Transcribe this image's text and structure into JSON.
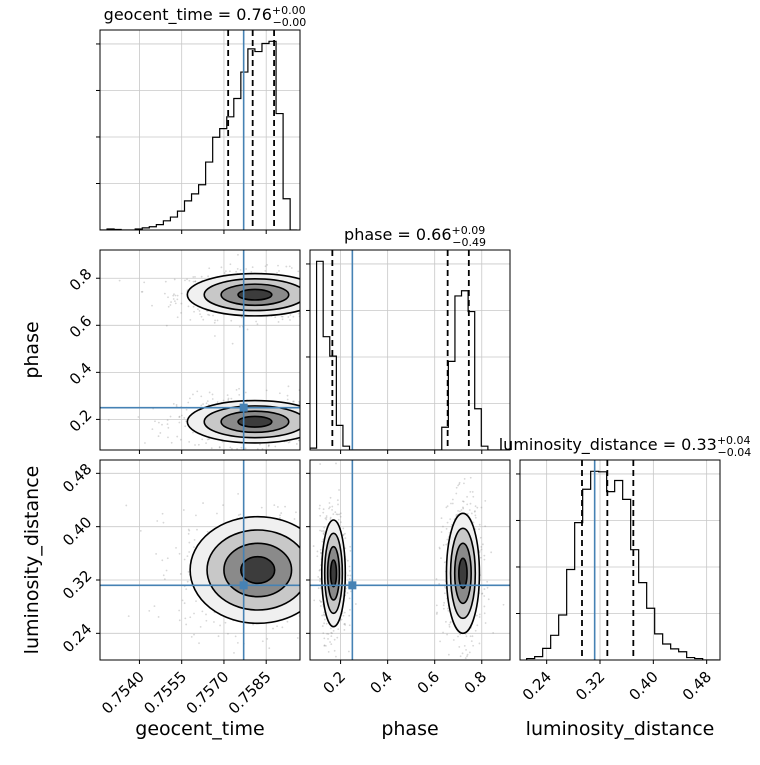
{
  "colors": {
    "truth": "#4682b4",
    "hist": "#000000",
    "quantile": "#000000",
    "grid": "#c8c8c8",
    "points": "#8c8c8c"
  },
  "chart_data": {
    "type": "corner",
    "parameters": [
      "geocent_time",
      "phase",
      "luminosity_distance"
    ],
    "titles": [
      {
        "param": "geocent_time",
        "median": "0.76",
        "plus": "+0.00",
        "minus": "−0.00"
      },
      {
        "param": "phase",
        "median": "0.66",
        "plus": "+0.09",
        "minus": "−0.49"
      },
      {
        "param": "luminosity_distance",
        "median": "0.33",
        "plus": "+0.04",
        "minus": "−0.04"
      }
    ],
    "axes": {
      "geocent_time": {
        "range": [
          0.7526,
          0.7597
        ],
        "ticks": [
          "0.7540",
          "0.7555",
          "0.7570",
          "0.7585"
        ]
      },
      "phase": {
        "range": [
          0.07,
          0.92
        ],
        "ticks": [
          "0.2",
          "0.4",
          "0.6",
          "0.8"
        ]
      },
      "luminosity_distance": {
        "range": [
          0.2,
          0.5
        ],
        "ticks": [
          "0.24",
          "0.32",
          "0.40",
          "0.48"
        ]
      }
    },
    "truths": {
      "geocent_time": 0.7577,
      "phase": 0.25,
      "luminosity_distance": 0.312
    },
    "quantiles": {
      "geocent_time": [
        0.75715,
        0.75802,
        0.75878
      ],
      "phase": [
        0.165,
        0.655,
        0.745
      ],
      "luminosity_distance": [
        0.293,
        0.331,
        0.37
      ]
    },
    "histograms": {
      "geocent_time": {
        "edges": [
          0.7526,
          0.75285,
          0.7531,
          0.75335,
          0.7536,
          0.75385,
          0.7541,
          0.75435,
          0.7546,
          0.75485,
          0.7551,
          0.75535,
          0.7556,
          0.75585,
          0.7561,
          0.75635,
          0.7566,
          0.75685,
          0.7571,
          0.75735,
          0.7576,
          0.75785,
          0.7581,
          0.75835,
          0.7586,
          0.75885,
          0.7591,
          0.75935,
          0.7596
        ],
        "counts": [
          0.0,
          0.2,
          0.1,
          0.0,
          0.0,
          0.2,
          0.4,
          0.6,
          1.0,
          1.7,
          2.4,
          3.5,
          5.4,
          6.7,
          8.4,
          12.6,
          17.2,
          18.8,
          21.0,
          24.4,
          29.3,
          33.6,
          33.1,
          34.6,
          35.0,
          21.6,
          5.8,
          0.0
        ]
      },
      "phase": {
        "edges": [
          0.07,
          0.098,
          0.126,
          0.154,
          0.182,
          0.21,
          0.238,
          0.266,
          0.294,
          0.322,
          0.35,
          0.378,
          0.406,
          0.434,
          0.462,
          0.49,
          0.518,
          0.546,
          0.574,
          0.602,
          0.63,
          0.658,
          0.686,
          0.714,
          0.742,
          0.77,
          0.798,
          0.826,
          0.854,
          0.882,
          0.91
        ],
        "counts": [
          0.4,
          39.8,
          23.9,
          19.8,
          5.2,
          0.8,
          0.0,
          0.0,
          0.0,
          0.0,
          0.0,
          0.0,
          0.0,
          0.0,
          0.0,
          0.0,
          0.0,
          0.0,
          0.0,
          0.0,
          4.8,
          18.7,
          32.5,
          33.6,
          29.2,
          8.7,
          0.8,
          0.0,
          0.0,
          0.0
        ]
      },
      "luminosity_distance": {
        "edges": [
          0.21,
          0.222,
          0.234,
          0.246,
          0.258,
          0.27,
          0.282,
          0.294,
          0.306,
          0.318,
          0.33,
          0.342,
          0.354,
          0.366,
          0.378,
          0.39,
          0.402,
          0.414,
          0.426,
          0.438,
          0.45,
          0.462,
          0.474,
          0.486,
          0.498
        ],
        "counts": [
          0.3,
          0.7,
          2.4,
          5.1,
          9.3,
          18.7,
          28.4,
          35.3,
          39.0,
          38.9,
          34.8,
          37.1,
          33.2,
          22.8,
          16.0,
          10.7,
          5.4,
          3.3,
          2.3,
          1.7,
          0.5,
          0.3,
          0.0,
          0.0
        ]
      }
    },
    "contour_levels": 4,
    "clusters": {
      "geocent_time_phase": [
        {
          "cx": 0.7581,
          "cy": 0.73,
          "sx": 0.0012,
          "sy": 0.045
        },
        {
          "cx": 0.7581,
          "cy": 0.19,
          "sx": 0.0012,
          "sy": 0.045
        }
      ],
      "geocent_time_luminosity_distance": [
        {
          "cx": 0.7582,
          "cy": 0.335,
          "sx": 0.0012,
          "sy": 0.04
        }
      ],
      "phase_luminosity_distance": [
        {
          "cx": 0.17,
          "cy": 0.33,
          "sx": 0.025,
          "sy": 0.04
        },
        {
          "cx": 0.72,
          "cy": 0.33,
          "sx": 0.035,
          "sy": 0.045
        }
      ]
    }
  }
}
